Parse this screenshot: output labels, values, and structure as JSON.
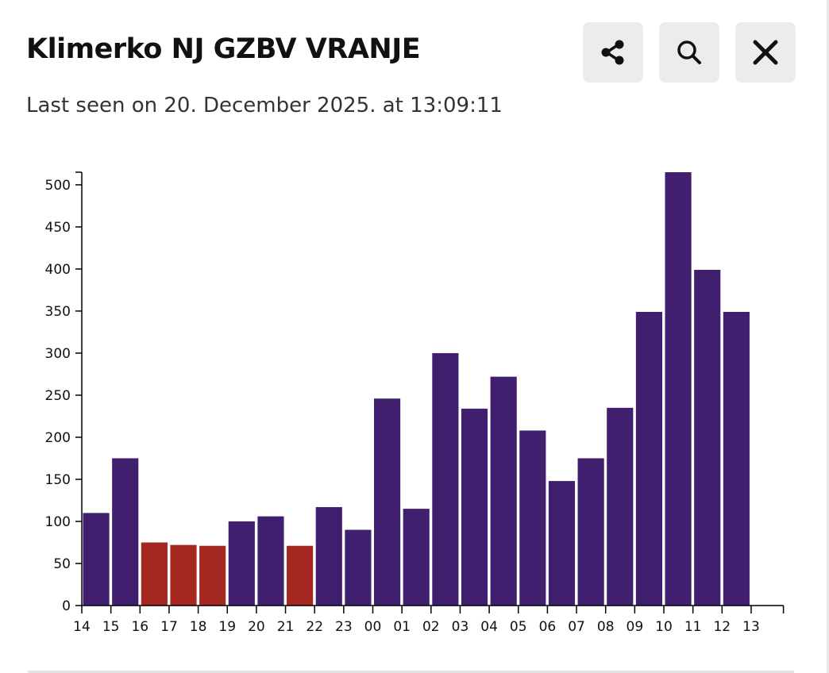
{
  "header": {
    "title": "Klimerko NJ GZBV VRANJE",
    "last_seen": "Last seen on 20. December 2025. at 13:09:11"
  },
  "toolbar": {
    "share_icon": "share-icon",
    "search_icon": "search-icon",
    "close_icon": "close-icon"
  },
  "colors": {
    "normal_bar": "#3f1f6e",
    "highlight_bar": "#a42820",
    "button_bg": "#ececec"
  },
  "chart_data": {
    "type": "bar",
    "categories": [
      "14",
      "15",
      "16",
      "17",
      "18",
      "19",
      "20",
      "21",
      "22",
      "23",
      "00",
      "01",
      "02",
      "03",
      "04",
      "05",
      "06",
      "07",
      "08",
      "09",
      "10",
      "11",
      "12"
    ],
    "values": [
      110,
      175,
      75,
      72,
      71,
      100,
      106,
      71,
      117,
      90,
      246,
      115,
      300,
      234,
      272,
      208,
      148,
      175,
      235,
      349,
      515,
      399,
      349
    ],
    "bar_colors": [
      "normal",
      "normal",
      "highlight",
      "highlight",
      "highlight",
      "normal",
      "normal",
      "highlight",
      "normal",
      "normal",
      "normal",
      "normal",
      "normal",
      "normal",
      "normal",
      "normal",
      "normal",
      "normal",
      "normal",
      "normal",
      "normal",
      "normal",
      "normal"
    ],
    "x_tick_labels": [
      "14",
      "15",
      "16",
      "17",
      "18",
      "19",
      "20",
      "21",
      "22",
      "23",
      "00",
      "01",
      "02",
      "03",
      "04",
      "05",
      "06",
      "07",
      "08",
      "09",
      "10",
      "11",
      "12",
      "13"
    ],
    "y_ticks": [
      0,
      50,
      100,
      150,
      200,
      250,
      300,
      350,
      400,
      450,
      500
    ],
    "ylim": [
      0,
      515
    ],
    "grid": false,
    "title": "",
    "xlabel": "",
    "ylabel": ""
  }
}
